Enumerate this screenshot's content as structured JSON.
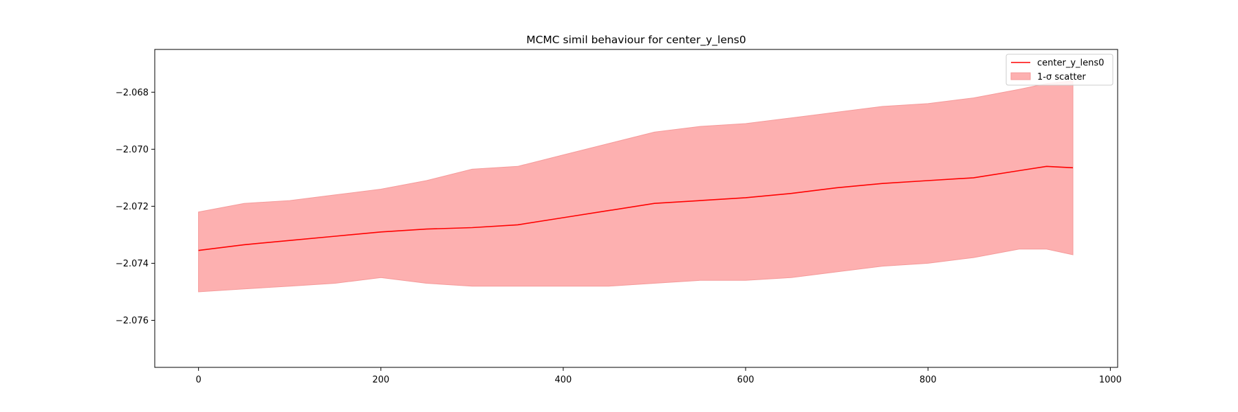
{
  "chart_data": {
    "type": "line",
    "title": "MCMC simil behaviour for center_y_lens0",
    "xlabel": "",
    "ylabel": "",
    "xlim": [
      -48,
      1008
    ],
    "ylim": [
      -2.07765,
      -2.0665
    ],
    "x_ticks": [
      0,
      200,
      400,
      600,
      800,
      1000
    ],
    "y_ticks": [
      -2.076,
      -2.074,
      -2.072,
      -2.07,
      -2.068
    ],
    "x_tick_labels": [
      "0",
      "200",
      "400",
      "600",
      "800",
      "1000"
    ],
    "y_tick_labels": [
      "−2.076",
      "−2.074",
      "−2.072",
      "−2.070",
      "−2.068"
    ],
    "grid": false,
    "legend_position": "top-right",
    "colors": {
      "line": "#ff0000",
      "band": "#fdb0b0",
      "band_edge": "#f59a9a"
    },
    "series": [
      {
        "name": "center_y_lens0",
        "kind": "line",
        "x": [
          0,
          50,
          100,
          150,
          200,
          250,
          300,
          350,
          400,
          450,
          500,
          550,
          600,
          650,
          700,
          750,
          800,
          850,
          900,
          930,
          959
        ],
        "y": [
          -2.07355,
          -2.07335,
          -2.0732,
          -2.07305,
          -2.0729,
          -2.0728,
          -2.07275,
          -2.07265,
          -2.0724,
          -2.07215,
          -2.0719,
          -2.0718,
          -2.0717,
          -2.07155,
          -2.07135,
          -2.0712,
          -2.0711,
          -2.071,
          -2.07075,
          -2.0706,
          -2.07065
        ]
      },
      {
        "name": "1-σ scatter",
        "kind": "band",
        "x": [
          0,
          50,
          100,
          150,
          200,
          250,
          300,
          350,
          400,
          450,
          500,
          550,
          600,
          650,
          700,
          750,
          800,
          850,
          900,
          930,
          959
        ],
        "upper": [
          -2.0722,
          -2.0719,
          -2.0718,
          -2.0716,
          -2.0714,
          -2.0711,
          -2.0707,
          -2.0706,
          -2.0702,
          -2.0698,
          -2.0694,
          -2.0692,
          -2.0691,
          -2.0689,
          -2.0687,
          -2.0685,
          -2.0684,
          -2.0682,
          -2.0679,
          -2.0677,
          -2.0676
        ],
        "lower": [
          -2.075,
          -2.0749,
          -2.0748,
          -2.0747,
          -2.0745,
          -2.0747,
          -2.0748,
          -2.0748,
          -2.0748,
          -2.0748,
          -2.0747,
          -2.0746,
          -2.0746,
          -2.0745,
          -2.0743,
          -2.0741,
          -2.074,
          -2.0738,
          -2.0735,
          -2.0735,
          -2.0737
        ]
      }
    ]
  }
}
